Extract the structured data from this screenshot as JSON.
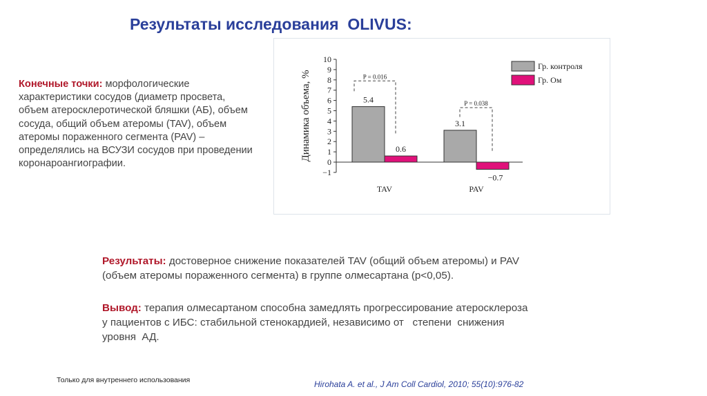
{
  "title": "Результаты исследования  OLIVUS:",
  "endpoints": {
    "label": "Конечные точки:",
    "lines": [
      " морфологические",
      "характеристики сосудов (диаметр просвета,",
      "объем атеросклеротической бляшки (АБ), объем",
      "сосуда, общий объем атеромы (TAV), объем",
      "атеромы пораженного сегмента (PAV) –",
      "определялись на ВСУЗИ сосудов при проведении",
      "коронароангиографии."
    ]
  },
  "results": {
    "label": "Результаты:",
    "lines": [
      " достоверное снижение показателей TAV (общий объем атеромы) и PAV",
      "(объем атеромы пораженного сегмента) в группе олмесартана (р<0,05)."
    ]
  },
  "conclusion": {
    "label": "Вывод:",
    "lines": [
      " терапия олмесартаном способна замедлять прогрессирование атеросклероза",
      "у пациентов с ИБС: стабильной стенокардией, независимо от   степени  снижения",
      "уровня  АД."
    ]
  },
  "footer": "Только для внутреннего использования",
  "citation": "Hirohata A. et al., J Am Coll Cardiol, 2010; 55(10):976-82",
  "chart_data": {
    "type": "bar",
    "categories": [
      "TAV",
      "PAV"
    ],
    "series": [
      {
        "name": "Гр. контроля",
        "values": [
          5.4,
          3.1
        ],
        "labels": [
          "5.4",
          "3.1"
        ],
        "color": "#a9a9a9"
      },
      {
        "name": "Гр. Ом",
        "values": [
          0.6,
          -0.7
        ],
        "labels": [
          "0.6",
          "−0.7"
        ],
        "color": "#e0117a"
      }
    ],
    "ylabel": "Динамика объема, %",
    "ylim": [
      -1,
      10
    ],
    "yticks": [
      "-1",
      "0",
      "1",
      "2",
      "3",
      "4",
      "5",
      "6",
      "7",
      "8",
      "9",
      "10"
    ],
    "annotations": [
      "P = 0.016",
      "P = 0.038"
    ],
    "legend": "top-right",
    "grid": false
  }
}
